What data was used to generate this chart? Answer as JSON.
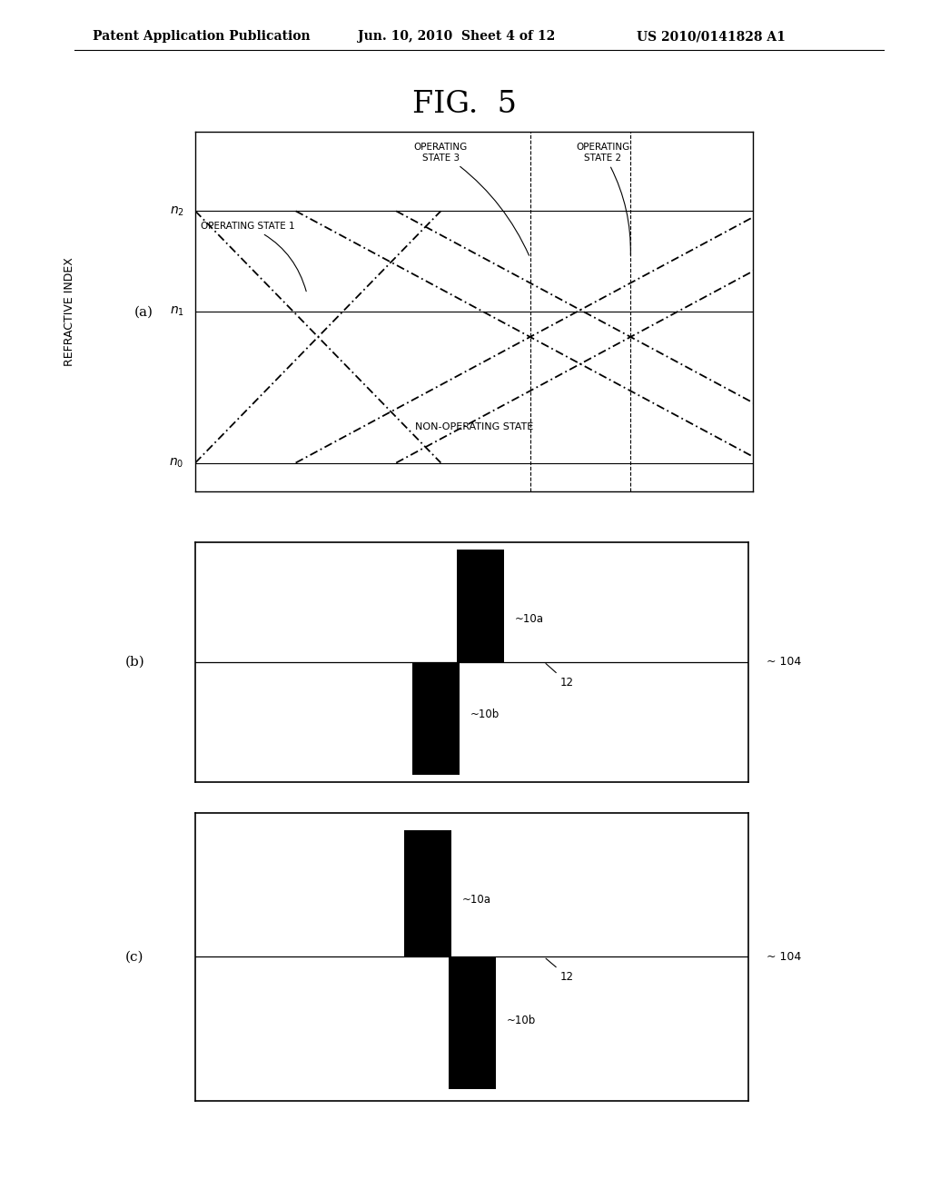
{
  "bg_color": "#ffffff",
  "header_text": "Patent Application Publication",
  "header_date": "Jun. 10, 2010  Sheet 4 of 12",
  "header_patent": "US 2010/0141828 A1",
  "fig_title": "FIG.  5",
  "panel_a_label": "(a)",
  "panel_b_label": "(b)",
  "panel_c_label": "(c)",
  "ylabel": "REFRACTIVE INDEX",
  "n0_label": "n_0",
  "n1_label": "n_1",
  "n2_label": "n_2",
  "state1_label": "OPERATING STATE 1",
  "state2_label": "OPERATING\nSTATE 2",
  "state3_label": "OPERATING\nSTATE 3",
  "nonop_label": "NON-OPERATING STATE",
  "label_104": "~ 104",
  "label_12": "12",
  "label_10a": "~10a",
  "label_10b": "~10b"
}
